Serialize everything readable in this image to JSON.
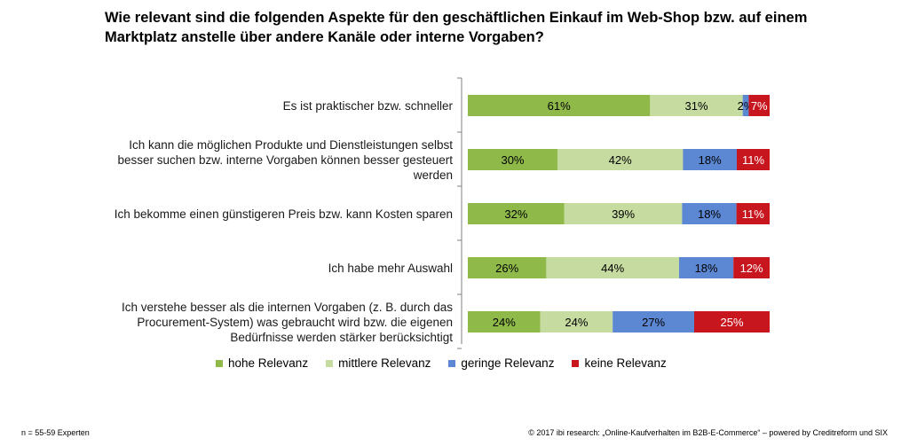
{
  "chart_data": {
    "type": "bar",
    "orientation": "horizontal",
    "stacked": true,
    "title": "Wie relevant sind die folgenden Aspekte für den geschäftlichen Einkauf im Web-Shop bzw. auf einem Marktplatz anstelle über andere Kanäle oder interne Vorgaben?",
    "categories": [
      [
        "Es ist praktischer bzw. schneller"
      ],
      [
        "Ich kann die möglichen Produkte und Dienstleistungen selbst",
        "besser suchen bzw. interne Vorgaben können besser gesteuert",
        "werden"
      ],
      [
        "Ich bekomme einen günstigeren Preis bzw. kann Kosten sparen"
      ],
      [
        "Ich habe mehr Auswahl"
      ],
      [
        "Ich verstehe besser als die internen Vorgaben (z. B. durch das",
        "Procurement-System) was gebraucht wird bzw. die eigenen",
        "Bedürfnisse werden stärker berücksichtigt"
      ]
    ],
    "series": [
      {
        "name": "hohe Relevanz",
        "color": "#8fba4a",
        "label_color": "#000000",
        "values": [
          61,
          30,
          32,
          26,
          24
        ],
        "labels": [
          "61%",
          "30%",
          "32%",
          "26%",
          "24%"
        ]
      },
      {
        "name": "mittlere Relevanz",
        "color": "#c5dba0",
        "label_color": "#000000",
        "values": [
          31,
          42,
          39,
          44,
          24
        ],
        "labels": [
          "31%",
          "42%",
          "39%",
          "44%",
          "24%"
        ]
      },
      {
        "name": "geringe Relevanz",
        "color": "#5b87d3",
        "label_color": "#000000",
        "values": [
          2,
          18,
          18,
          18,
          27
        ],
        "labels": [
          "2%",
          "18%",
          "18%",
          "18%",
          "27%"
        ]
      },
      {
        "name": "keine Relevanz",
        "color": "#c8161e",
        "label_color": "#ffffff",
        "values": [
          7,
          11,
          11,
          12,
          25
        ],
        "labels": [
          "7%",
          "11%",
          "11%",
          "12%",
          "25%"
        ]
      }
    ],
    "xlim": [
      0,
      100
    ],
    "grid": false,
    "legend_position": "bottom"
  },
  "footer": {
    "sample": "n = 55-59 Experten",
    "source": "© 2017 ibi research: „Online-Kaufverhalten im B2B-E-Commerce“ – powered by Creditreform und SIX"
  }
}
